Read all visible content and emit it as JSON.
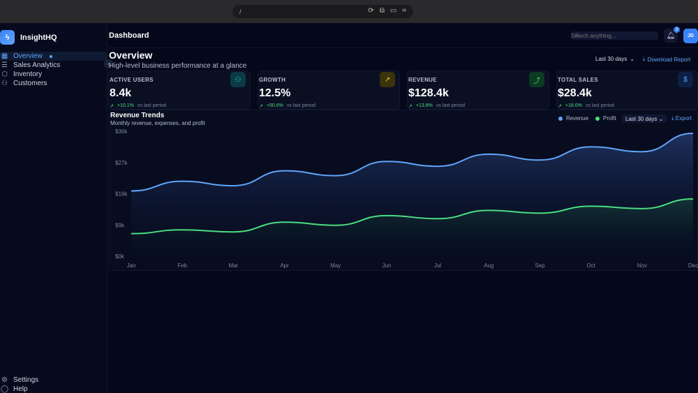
{
  "browser": {
    "url": "/"
  },
  "app": {
    "name": "InsightHQ",
    "logo_icon": "bolt-icon"
  },
  "sidebar": {
    "items": [
      {
        "label": "Overview",
        "icon": "grid-icon",
        "active": true
      },
      {
        "label": "Sales Analytics",
        "icon": "bar-chart-icon",
        "active": false
      },
      {
        "label": "Inventory",
        "icon": "box-icon",
        "active": false
      },
      {
        "label": "Customers",
        "icon": "users-icon",
        "active": false
      }
    ],
    "bottom": [
      {
        "label": "Settings",
        "icon": "gear-icon"
      },
      {
        "label": "Help",
        "icon": "help-circle-icon"
      }
    ]
  },
  "header": {
    "title": "Dashboard",
    "search_placeholder": "Search anything...",
    "notification_count": "3",
    "avatar_initials": "JD"
  },
  "page": {
    "title": "Overview",
    "subtitle": "High-level business performance at a glance",
    "range": "Last 30 days",
    "download_label": "Download Report"
  },
  "cards": [
    {
      "label": "ACTIVE USERS",
      "value": "8.4k",
      "delta": "+10.1%",
      "delta_note": "vs last period",
      "icon": "users-icon",
      "color": "#22d3ee"
    },
    {
      "label": "GROWTH",
      "value": "12.5%",
      "delta": "+50.6%",
      "delta_note": "vs last period",
      "icon": "arrow-up-right-icon",
      "color": "#facc15"
    },
    {
      "label": "REVENUE",
      "value": "$128.4k",
      "delta": "+13.8%",
      "delta_note": "vs last period",
      "icon": "trending-up-icon",
      "color": "#4ade80"
    },
    {
      "label": "TOTAL SALES",
      "value": "$28.4k",
      "delta": "+18.0%",
      "delta_note": "vs last period",
      "icon": "dollar-icon",
      "color": "#60a5fa"
    }
  ],
  "chart_panel": {
    "title": "Revenue Trends",
    "subtitle": "Monthly revenue, expenses, and profit",
    "range": "Last 30 days",
    "export_label": "Export"
  },
  "chart_data": {
    "type": "area",
    "title": "Revenue Trends",
    "categories": [
      "Jan",
      "Feb",
      "Mar",
      "Apr",
      "May",
      "Jun",
      "Jul",
      "Aug",
      "Sep",
      "Oct",
      "Nov",
      "Dec"
    ],
    "y_ticks": [
      "$0k",
      "$9k",
      "$18k",
      "$27k",
      "$36k"
    ],
    "ylim": [
      0,
      36
    ],
    "series": [
      {
        "name": "Revenue",
        "color": "#60a5fa",
        "values": [
          18.8,
          21.6,
          20.3,
          24.6,
          23.2,
          27.3,
          25.9,
          29.4,
          27.7,
          31.5,
          30.1,
          35.4
        ]
      },
      {
        "name": "Profit",
        "color": "#4ade80",
        "values": [
          6.5,
          7.6,
          7.0,
          9.8,
          8.9,
          11.7,
          10.8,
          13.2,
          12.4,
          14.4,
          13.7,
          16.5
        ]
      }
    ],
    "legend_position": "top-right",
    "grid": false
  }
}
